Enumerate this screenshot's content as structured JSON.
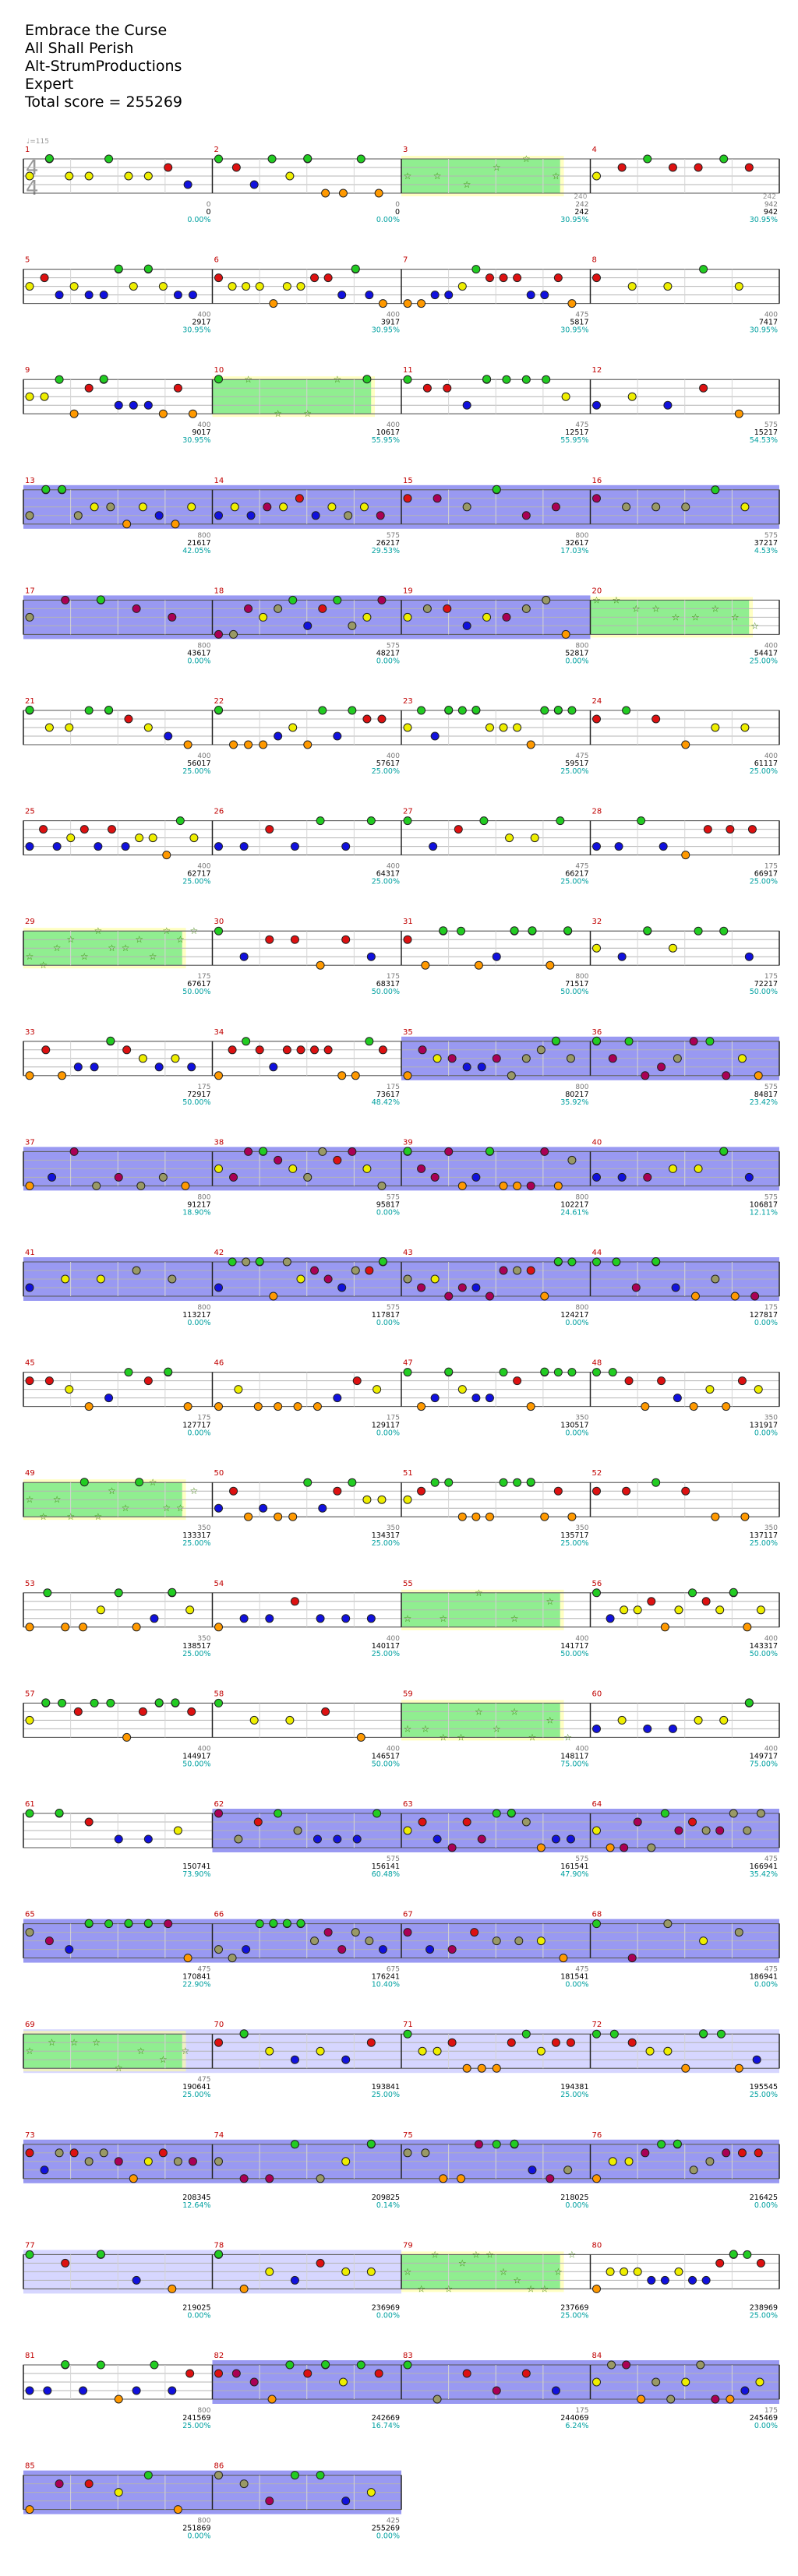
{
  "header": {
    "song": "Embrace the Curse",
    "artist": "All Shall Perish",
    "charter": "Alt-StrumProductions",
    "difficulty": "Expert",
    "total": "Total score = 255269"
  },
  "chart_data": {
    "type": "note-chart",
    "time_signature": [
      "4",
      "4"
    ],
    "tempo_label": "♩=115",
    "colors": {
      "green": "#22cc22",
      "red": "#dd1111",
      "yellow": "#eeee00",
      "blue": "#1111dd",
      "orange": "#ff9900",
      "olive": "#999966",
      "magenta": "#aa0055",
      "starpower": "#90ee90",
      "solo": "#7777ee",
      "unison": "#ccccff"
    },
    "rows": [
      {
        "measures": [
          1,
          2,
          3,
          4
        ],
        "pos": [
          "0",
          "0",
          "242",
          "942"
        ],
        "score": [
          "0",
          "0",
          "242",
          "942"
        ],
        "pct": [
          "0.00%",
          "0.00%",
          "30.95%",
          "30.95%"
        ]
      },
      {
        "measures": [
          5,
          6,
          7,
          8
        ],
        "pos": [
          "400",
          "400",
          "475",
          "400"
        ],
        "score": [
          "2917",
          "3917",
          "5817",
          "7417"
        ],
        "pct": [
          "30.95%",
          "30.95%",
          "30.95%",
          "30.95%"
        ]
      },
      {
        "measures": [
          9,
          10,
          11,
          12
        ],
        "pos": [
          "400",
          "400",
          "475",
          "575"
        ],
        "score": [
          "9017",
          "10617",
          "12517",
          "15217"
        ],
        "pct": [
          "30.95%",
          "55.95%",
          "55.95%",
          "54.53%"
        ]
      },
      {
        "measures": [
          13,
          14,
          15,
          16
        ],
        "pos": [
          "800",
          "575",
          "800",
          "575"
        ],
        "score": [
          "21617",
          "26217",
          "32617",
          "37217"
        ],
        "pct": [
          "42.05%",
          "29.53%",
          "17.03%",
          "4.53%"
        ]
      },
      {
        "measures": [
          17,
          18,
          19,
          20
        ],
        "pos": [
          "800",
          "575",
          "800",
          "400"
        ],
        "score": [
          "43617",
          "48217",
          "52817",
          "54417"
        ],
        "pct": [
          "0.00%",
          "0.00%",
          "0.00%",
          "25.00%"
        ]
      },
      {
        "measures": [
          21,
          22,
          23,
          24
        ],
        "pos": [
          "400",
          "400",
          "475",
          "400"
        ],
        "score": [
          "56017",
          "57617",
          "59517",
          "61117"
        ],
        "pct": [
          "25.00%",
          "25.00%",
          "25.00%",
          "25.00%"
        ]
      },
      {
        "measures": [
          25,
          26,
          27,
          28
        ],
        "pos": [
          "400",
          "400",
          "475",
          "175"
        ],
        "score": [
          "62717",
          "64317",
          "66217",
          "66917"
        ],
        "pct": [
          "25.00%",
          "25.00%",
          "25.00%",
          "25.00%"
        ]
      },
      {
        "measures": [
          29,
          30,
          31,
          32
        ],
        "pos": [
          "175",
          "175",
          "800",
          "175"
        ],
        "score": [
          "67617",
          "68317",
          "71517",
          "72217"
        ],
        "pct": [
          "50.00%",
          "50.00%",
          "50.00%",
          "50.00%"
        ]
      },
      {
        "measures": [
          33,
          34,
          35,
          36
        ],
        "pos": [
          "175",
          "175",
          "800",
          "575"
        ],
        "score": [
          "72917",
          "73617",
          "80217",
          "84817"
        ],
        "pct": [
          "50.00%",
          "48.42%",
          "35.92%",
          "23.42%"
        ]
      },
      {
        "measures": [
          37,
          38,
          39,
          40
        ],
        "pos": [
          "800",
          "575",
          "800",
          "575"
        ],
        "score": [
          "91217",
          "95817",
          "102217",
          "106817"
        ],
        "pct": [
          "18.90%",
          "0.00%",
          "24.61%",
          "12.11%"
        ]
      },
      {
        "measures": [
          41,
          42,
          43,
          44
        ],
        "pos": [
          "800",
          "575",
          "800",
          "175"
        ],
        "score": [
          "113217",
          "117817",
          "124217",
          "127817"
        ],
        "pct": [
          "0.00%",
          "0.00%",
          "0.00%",
          "0.00%"
        ]
      },
      {
        "measures": [
          45,
          46,
          47,
          48
        ],
        "pos": [
          "175",
          "175",
          "350",
          "350"
        ],
        "score": [
          "127717",
          "129117",
          "130517",
          "131917"
        ],
        "pct": [
          "0.00%",
          "0.00%",
          "0.00%",
          "0.00%"
        ]
      },
      {
        "measures": [
          49,
          50,
          51,
          52
        ],
        "pos": [
          "350",
          "350",
          "350",
          "350"
        ],
        "score": [
          "133317",
          "134317",
          "135717",
          "137117"
        ],
        "pct": [
          "25.00%",
          "25.00%",
          "25.00%",
          "25.00%"
        ]
      },
      {
        "measures": [
          53,
          54,
          55,
          56
        ],
        "pos": [
          "350",
          "400",
          "400",
          "400"
        ],
        "score": [
          "138517",
          "140117",
          "141717",
          "143317"
        ],
        "pct": [
          "25.00%",
          "25.00%",
          "50.00%",
          "50.00%"
        ]
      },
      {
        "measures": [
          57,
          58,
          59,
          60
        ],
        "pos": [
          "400",
          "400",
          "400",
          "400"
        ],
        "score": [
          "144917",
          "146517",
          "148117",
          "149717"
        ],
        "pct": [
          "50.00%",
          "50.00%",
          "75.00%",
          "75.00%"
        ]
      },
      {
        "measures": [
          61,
          62,
          63,
          64
        ],
        "pos": [
          "",
          "575",
          "575",
          "475"
        ],
        "score": [
          "150741",
          "156141",
          "161541",
          "166941"
        ],
        "pct": [
          "73.90%",
          "60.48%",
          "47.90%",
          "35.42%"
        ]
      },
      {
        "measures": [
          65,
          66,
          67,
          68
        ],
        "pos": [
          "475",
          "675",
          "475",
          "475"
        ],
        "score": [
          "170841",
          "176241",
          "181541",
          "186941"
        ],
        "pct": [
          "22.90%",
          "10.40%",
          "0.00%",
          "0.00%"
        ]
      },
      {
        "measures": [
          69,
          70,
          71,
          72
        ],
        "pos": [
          "475",
          "",
          "",
          ""
        ],
        "score": [
          "190641",
          "193841",
          "194381",
          "195545"
        ],
        "pct": [
          "25.00%",
          "25.00%",
          "25.00%",
          "25.00%"
        ]
      },
      {
        "measures": [
          73,
          74,
          75,
          76
        ],
        "pos": [
          "",
          "",
          "",
          ""
        ],
        "score": [
          "208345",
          "209825",
          "218025",
          "216425"
        ],
        "pct": [
          "12.64%",
          "0.14%",
          "0.00%",
          "0.00%"
        ]
      },
      {
        "measures": [
          77,
          78,
          79,
          80
        ],
        "pos": [
          "",
          "",
          "",
          ""
        ],
        "score": [
          "219025",
          "236969",
          "237669",
          "238969"
        ],
        "pct": [
          "0.00%",
          "0.00%",
          "25.00%",
          "25.00%"
        ]
      },
      {
        "measures": [
          81,
          82,
          83,
          84
        ],
        "pos": [
          "800",
          "",
          "175",
          "175"
        ],
        "score": [
          "241569",
          "242669",
          "244069",
          "245469"
        ],
        "pct": [
          "25.00%",
          "16.74%",
          "6.24%",
          "0.00%"
        ]
      },
      {
        "measures": [
          85,
          86
        ],
        "pos": [
          "800",
          "425"
        ],
        "score": [
          "251869",
          "255269"
        ],
        "pct": [
          "0.00%",
          "0.00%"
        ]
      }
    ],
    "section_tags": [
      {
        "measure": 3,
        "label": "240"
      },
      {
        "measure": 4,
        "label": "242"
      }
    ],
    "starpower_measures": [
      3,
      10,
      20,
      29,
      49,
      55,
      59,
      69,
      79
    ],
    "solo_measures": [
      13,
      14,
      15,
      16,
      17,
      18,
      19,
      35,
      36,
      37,
      38,
      39,
      40,
      41,
      42,
      43,
      44,
      62,
      63,
      64,
      65,
      66,
      67,
      68,
      73,
      74,
      75,
      76,
      82,
      83,
      84,
      85,
      86
    ],
    "unison_measures": [
      69,
      70,
      71,
      72,
      77,
      78
    ]
  }
}
